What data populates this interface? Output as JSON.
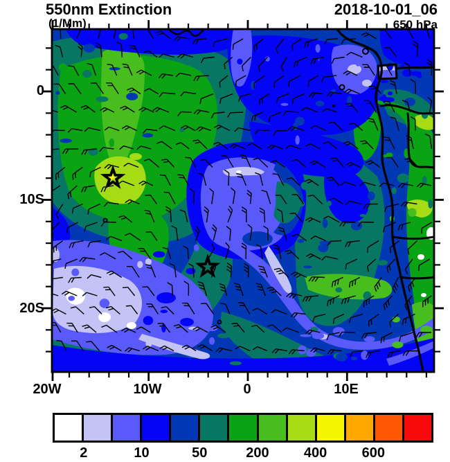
{
  "header": {
    "title": "550nm Extinction",
    "units": "(1/Mm)",
    "datetime": "2018-10-01_06",
    "level": "650 hPa"
  },
  "axes": {
    "x_ticks": [
      {
        "label": "20W",
        "lon": -20
      },
      {
        "label": "10W",
        "lon": -10
      },
      {
        "label": "0",
        "lon": 0
      },
      {
        "label": "10E",
        "lon": 10
      }
    ],
    "y_ticks": [
      {
        "label": "0",
        "lat": 0
      },
      {
        "label": "10S",
        "lat": -10
      },
      {
        "label": "20S",
        "lat": -20
      }
    ]
  },
  "colorbar": {
    "tick_labels": [
      "2",
      "10",
      "50",
      "200",
      "400",
      "600"
    ],
    "tick_boundary_indices": [
      1,
      3,
      5,
      7,
      9,
      11
    ],
    "cell_colors": [
      "#FFFFFF",
      "#C3C3F6",
      "#5A5AFB",
      "#0404F6",
      "#0338B4",
      "#077763",
      "#0AA314",
      "#47BE1E",
      "#A6DC16",
      "#F6F600",
      "#FFA800",
      "#FF5704",
      "#F90A0A"
    ]
  },
  "map": {
    "markers": [
      {
        "name": "site-star-west",
        "lon": -13.6,
        "lat": -8.0
      },
      {
        "name": "site-star-east",
        "lon": -4.05,
        "lat": -16.2
      }
    ]
  },
  "chart_data": {
    "type": "heatmap",
    "title": "550nm Extinction",
    "units": "1/Mm",
    "timestamp": "2018-10-01_06",
    "pressure_level": "650 hPa",
    "x_axis": {
      "tick_labels": [
        "20W",
        "10W",
        "0",
        "10E"
      ],
      "lon_range": [
        -19.8,
        18.8
      ]
    },
    "y_axis": {
      "tick_labels": [
        "0",
        "10S",
        "20S"
      ],
      "lat_range": [
        -25.9,
        5.8
      ]
    },
    "color_scale": {
      "tick_values": [
        2,
        10,
        50,
        200,
        400,
        600
      ],
      "colors": [
        "#FFFFFF",
        "#C3C3F6",
        "#5A5AFB",
        "#0404F6",
        "#0338B4",
        "#077763",
        "#0AA314",
        "#47BE1E",
        "#A6DC16",
        "#F6F600",
        "#FFA800",
        "#FF5704",
        "#F90A0A"
      ]
    },
    "overlays": [
      "wind barbs",
      "coastlines and borders",
      "star site markers"
    ]
  }
}
